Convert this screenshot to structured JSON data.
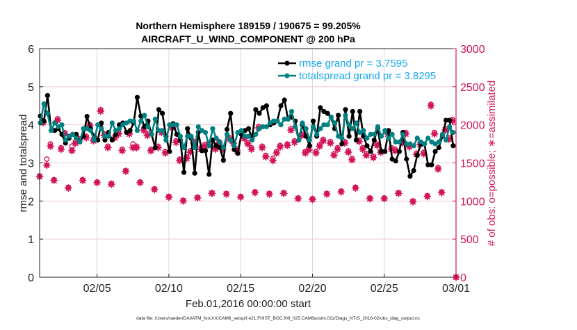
{
  "chart_data": {
    "type": "line",
    "title_line1": "Northern Hemisphere 189159 / 190675 = 99.205%",
    "title_line2": "AIRCRAFT_U_WIND_COMPONENT @ 200 hPa",
    "xlabel": "Feb.01,2016 00:00:00 start",
    "ylabel_left": "rmse and totalspread",
    "ylabel_right": "# of obs: o=possible; ∗=assimilated",
    "footnote": "data file: /Users/raeder/DAI/ATM_forcXX/CAM6_setup/f.e21.FHIST_BGC.f09_025.CAM6assim.011/Diags_NTrS_2016-02/obs_diag_output.nc",
    "x_unit": "days since Feb.01,2016 00:00:00",
    "x_step_days": 0.25,
    "xlim": [
      0,
      29
    ],
    "x_ticks": [
      {
        "value": 4,
        "label": "02/05"
      },
      {
        "value": 9,
        "label": "02/10"
      },
      {
        "value": 14,
        "label": "02/15"
      },
      {
        "value": 19,
        "label": "02/20"
      },
      {
        "value": 24,
        "label": "02/25"
      },
      {
        "value": 29,
        "label": "03/01"
      }
    ],
    "ylim_left": [
      0,
      6
    ],
    "y_ticks_left": [
      "0",
      "1",
      "2",
      "3",
      "4",
      "5",
      "6"
    ],
    "ylim_right": [
      0,
      3000
    ],
    "y_ticks_right": [
      "0",
      "500",
      "1000",
      "1500",
      "2000",
      "2500",
      "3000"
    ],
    "grid": true,
    "legend_position": "top-right",
    "colors": {
      "rmse": "#000000",
      "totalspread": "#008080",
      "obs": "#d4145a",
      "legend_text": "#18a8f0",
      "grid_v": "#d8d8d8",
      "grid_h": "#f2c9d7"
    },
    "series": [
      {
        "name": "rmse",
        "legend": "rmse grand pr = 3.7595",
        "axis": "left",
        "values": [
          4.23,
          4.1,
          4.77,
          3.85,
          3.85,
          3.9,
          3.75,
          3.52,
          3.65,
          3.75,
          3.75,
          3.55,
          3.7,
          4.22,
          3.9,
          3.7,
          3.6,
          4.05,
          3.6,
          3.8,
          3.6,
          3.75,
          4.0,
          4.05,
          3.8,
          3.85,
          4.05,
          4.72,
          4.23,
          3.95,
          4.1,
          3.75,
          3.4,
          4.4,
          4.3,
          3.7,
          3.3,
          4.03,
          3.75,
          3.6,
          2.75,
          3.9,
          3.65,
          2.73,
          3.8,
          3.32,
          3.32,
          2.7,
          3.6,
          3.45,
          3.4,
          3.07,
          3.88,
          4.3,
          3.35,
          3.25,
          3.75,
          3.85,
          3.9,
          3.65,
          4.4,
          4.3,
          4.45,
          4.5,
          4.0,
          4.05,
          4.1,
          4.5,
          4.65,
          4.15,
          4.2,
          4.1,
          3.6,
          4.0,
          3.7,
          3.45,
          4.1,
          3.7,
          4.45,
          4.35,
          4.3,
          4.2,
          3.9,
          4.25,
          3.5,
          4.4,
          3.7,
          4.35,
          3.6,
          4.35,
          3.7,
          3.45,
          3.3,
          3.6,
          3.9,
          3.3,
          3.3,
          3.85,
          3.1,
          3.05,
          3.3,
          3.8,
          3.1,
          2.65,
          2.8,
          3.2,
          3.5,
          3.5,
          2.95,
          2.95,
          3.3,
          3.4,
          3.7,
          4.12,
          4.12,
          3.45
        ]
      },
      {
        "name": "totalspread",
        "legend": "totalspread grand pr = 3.8295",
        "axis": "left",
        "values": [
          4.05,
          4.55,
          4.3,
          3.85,
          4.05,
          3.95,
          4.0,
          3.6,
          3.7,
          3.75,
          3.65,
          3.55,
          3.9,
          3.9,
          3.85,
          3.6,
          4.0,
          3.9,
          3.7,
          3.7,
          4.05,
          3.85,
          3.9,
          4.0,
          4.05,
          4.1,
          4.1,
          3.85,
          4.1,
          4.25,
          3.95,
          3.75,
          4.15,
          3.85,
          3.85,
          3.6,
          4.0,
          4.0,
          4.0,
          3.7,
          3.4,
          3.7,
          3.7,
          3.4,
          3.95,
          3.85,
          3.8,
          3.45,
          3.9,
          3.65,
          3.55,
          3.4,
          3.75,
          3.6,
          3.45,
          3.8,
          3.85,
          3.7,
          3.7,
          3.6,
          3.75,
          3.9,
          3.95,
          3.95,
          4.05,
          4.1,
          4.1,
          4.0,
          4.15,
          4.15,
          4.35,
          3.95,
          3.6,
          4.05,
          3.9,
          3.6,
          3.95,
          3.75,
          3.9,
          4.0,
          4.0,
          4.2,
          4.05,
          3.7,
          3.65,
          4.25,
          4.0,
          3.9,
          4.05,
          3.8,
          3.85,
          3.65,
          3.75,
          3.75,
          3.95,
          3.7,
          3.85,
          3.65,
          3.75,
          3.55,
          3.55,
          3.75,
          3.5,
          3.5,
          3.45,
          3.65,
          3.55,
          3.5,
          3.65,
          3.55,
          3.5,
          3.55,
          3.75,
          3.6,
          3.95,
          3.8
        ]
      },
      {
        "name": "possible",
        "marker": "o",
        "axis": "right",
        "values": [
          1330,
          2050,
          1550,
          1750,
          1280,
          2080,
          1700,
          1900,
          1180,
          1720,
          1780,
          1820,
          1280,
          1850,
          2000,
          1810,
          1250,
          2200,
          1880,
          1720,
          1230,
          1850,
          1900,
          1680,
          1400,
          1900,
          1750,
          1720,
          1250,
          1950,
          1880,
          1680,
          1160,
          1720,
          1920,
          1650,
          1060,
          1980,
          1790,
          1550,
          1010,
          1580,
          1660,
          1780,
          1050,
          1700,
          1740,
          1760,
          1110,
          1700,
          1780,
          1700,
          1100,
          1830,
          1780,
          1680,
          1060,
          1840,
          1770,
          1700,
          1120,
          1980,
          1720,
          1600,
          1100,
          1560,
          1650,
          1730,
          1110,
          1750,
          1950,
          1790,
          1040,
          1880,
          1650,
          1690,
          1030,
          1650,
          1740,
          1810,
          1100,
          1780,
          1620,
          1700,
          1130,
          1780,
          1660,
          1560,
          1180,
          1800,
          1700,
          1620,
          1040,
          1590,
          1750,
          1660,
          1040,
          1900,
          1700,
          1680,
          1110,
          1780,
          1900,
          1730,
          1000,
          1630,
          1760,
          1640,
          1070,
          2270,
          1900,
          1440,
          1120,
          1950,
          1830,
          2070,
          0
        ]
      },
      {
        "name": "assimilated",
        "marker": "*",
        "axis": "right",
        "values": [
          1320,
          2030,
          1470,
          1720,
          1270,
          2060,
          1680,
          1880,
          1170,
          1660,
          1760,
          1800,
          1270,
          1830,
          1990,
          1790,
          1240,
          2180,
          1860,
          1700,
          1220,
          1830,
          1880,
          1660,
          1390,
          1880,
          1700,
          1700,
          1240,
          1930,
          1860,
          1660,
          1150,
          1700,
          1900,
          1630,
          1050,
          1960,
          1770,
          1530,
          1000,
          1560,
          1640,
          1760,
          1040,
          1680,
          1720,
          1740,
          1100,
          1680,
          1760,
          1680,
          1090,
          1810,
          1760,
          1660,
          1050,
          1820,
          1750,
          1680,
          1110,
          1960,
          1700,
          1580,
          1090,
          1530,
          1630,
          1710,
          1100,
          1730,
          1930,
          1770,
          1030,
          1860,
          1630,
          1670,
          1020,
          1630,
          1720,
          1790,
          1090,
          1760,
          1600,
          1680,
          1120,
          1760,
          1640,
          1540,
          1170,
          1780,
          1680,
          1600,
          1030,
          1570,
          1730,
          1640,
          1030,
          1880,
          1680,
          1660,
          1100,
          1760,
          1880,
          1710,
          990,
          1610,
          1740,
          1620,
          1060,
          2250,
          1880,
          1420,
          1110,
          1930,
          1810,
          2050,
          0
        ]
      }
    ]
  }
}
